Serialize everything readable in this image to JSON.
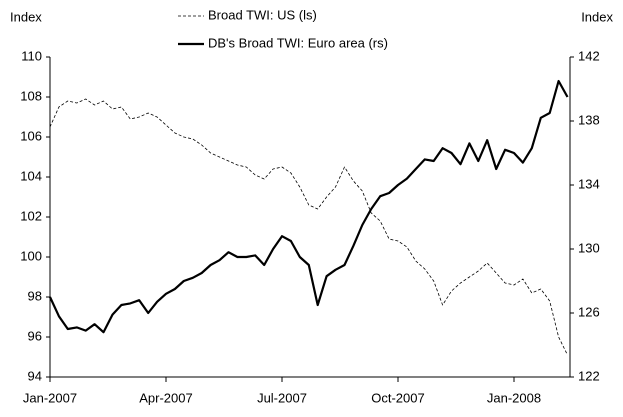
{
  "chart_data": {
    "type": "line",
    "y_label": "Index",
    "y2_label": "Index",
    "categories": [
      "Jan-2007",
      null,
      null,
      null,
      null,
      null,
      null,
      null,
      null,
      null,
      null,
      null,
      null,
      "Apr-2007",
      null,
      null,
      null,
      null,
      null,
      null,
      null,
      null,
      null,
      null,
      null,
      null,
      "Jul-2007",
      null,
      null,
      null,
      null,
      null,
      null,
      null,
      null,
      null,
      null,
      null,
      null,
      "Oct-2007",
      null,
      null,
      null,
      null,
      null,
      null,
      null,
      null,
      null,
      null,
      null,
      null,
      "Jan-2008",
      null,
      null,
      null,
      null,
      null,
      null
    ],
    "series": [
      {
        "name": "Broad TWI: US (ls)",
        "color": "#000000",
        "dash": true,
        "axis": "y",
        "values": [
          106.5,
          107.5,
          107.8,
          107.7,
          107.9,
          107.6,
          107.8,
          107.4,
          107.5,
          106.9,
          107.0,
          107.2,
          107.0,
          106.6,
          106.2,
          106.0,
          105.9,
          105.6,
          105.2,
          105.0,
          104.8,
          104.6,
          104.5,
          104.1,
          103.9,
          104.4,
          104.5,
          104.2,
          103.5,
          102.6,
          102.4,
          103.0,
          103.5,
          104.5,
          103.8,
          103.3,
          102.2,
          101.8,
          100.9,
          100.8,
          100.5,
          99.8,
          99.4,
          98.8,
          97.6,
          98.3,
          98.7,
          99.0,
          99.3,
          99.7,
          99.2,
          98.7,
          98.6,
          98.9,
          98.2,
          98.4,
          97.8,
          96.0,
          95.1
        ]
      },
      {
        "name": "DB's Broad TWI: Euro area (rs)",
        "color": "#000000",
        "dash": false,
        "axis": "y2",
        "values": [
          127.0,
          125.8,
          125.0,
          125.1,
          124.9,
          125.3,
          124.8,
          125.9,
          126.5,
          126.6,
          126.8,
          126.0,
          126.7,
          127.2,
          127.5,
          128.0,
          128.2,
          128.5,
          129.0,
          129.3,
          129.8,
          129.5,
          129.5,
          129.6,
          129.0,
          130.0,
          130.8,
          130.5,
          129.5,
          129.0,
          126.5,
          128.3,
          128.7,
          129.0,
          130.2,
          131.5,
          132.5,
          133.3,
          133.5,
          134.0,
          134.4,
          135.0,
          135.6,
          135.5,
          136.3,
          136.0,
          135.3,
          136.6,
          135.5,
          136.8,
          135.0,
          136.2,
          136.0,
          135.4,
          136.3,
          138.2,
          138.5,
          140.5,
          139.5
        ]
      }
    ],
    "ylim": [
      94,
      110
    ],
    "yticks": [
      94,
      96,
      98,
      100,
      102,
      104,
      106,
      108,
      110
    ],
    "y2lim": [
      122,
      142
    ],
    "y2ticks": [
      122,
      126,
      130,
      134,
      138,
      142
    ]
  }
}
